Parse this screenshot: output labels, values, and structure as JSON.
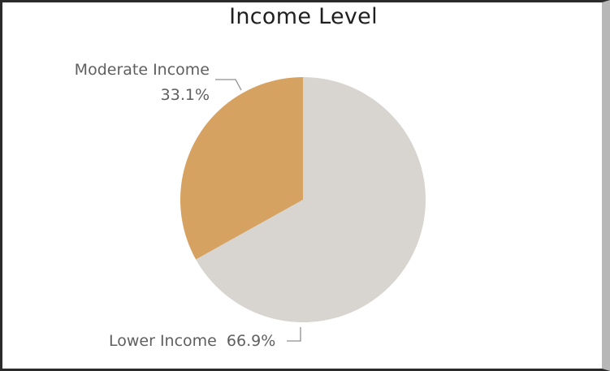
{
  "chart_data": {
    "type": "pie",
    "title": "Income Level",
    "slices": [
      {
        "label": "Lower Income",
        "value": 66.9,
        "value_label": "66.9%",
        "color": "#d8d4d0"
      },
      {
        "label": "Moderate Income",
        "value": 33.1,
        "value_label": "33.1%",
        "color": "#d6a262"
      }
    ],
    "start_angle_deg": 0,
    "direction": "clockwise",
    "legend": "none"
  }
}
